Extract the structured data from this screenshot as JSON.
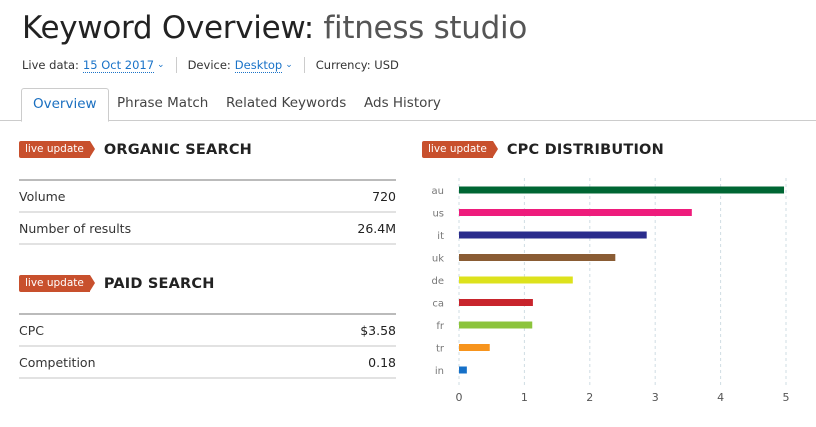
{
  "header": {
    "title_prefix": "Keyword Overview:",
    "keyword": "fitness studio",
    "live_data_label": "Live data:",
    "live_data_value": "15 Oct 2017",
    "device_label": "Device:",
    "device_value": "Desktop",
    "currency": "Currency: USD"
  },
  "tabs": [
    {
      "label": "Overview",
      "active": true
    },
    {
      "label": "Phrase Match"
    },
    {
      "label": "Related Keywords"
    },
    {
      "label": "Ads History"
    }
  ],
  "organic": {
    "badge": "live update",
    "title": "ORGANIC SEARCH",
    "rows": [
      {
        "label": "Volume",
        "value": "720"
      },
      {
        "label": "Number of results",
        "value": "26.4M"
      }
    ]
  },
  "paid": {
    "badge": "live update",
    "title": "PAID SEARCH",
    "rows": [
      {
        "label": "CPC",
        "value": "$3.58"
      },
      {
        "label": "Competition",
        "value": "0.18"
      }
    ]
  },
  "cpc": {
    "badge": "live update",
    "title": "CPC DISTRIBUTION"
  },
  "chart_data": {
    "type": "bar",
    "orientation": "horizontal",
    "categories": [
      "au",
      "us",
      "it",
      "uk",
      "de",
      "ca",
      "fr",
      "tr",
      "in"
    ],
    "values": [
      4.97,
      3.56,
      2.87,
      2.39,
      1.74,
      1.13,
      1.12,
      0.47,
      0.12
    ],
    "colors": [
      "#006633",
      "#ee1c7c",
      "#2a2c8c",
      "#8a5c34",
      "#dde21c",
      "#c8242c",
      "#8cc43c",
      "#f7941d",
      "#1670c8"
    ],
    "xlim": [
      0,
      5
    ],
    "xticks": [
      "0",
      "1",
      "2",
      "3",
      "4",
      "5"
    ],
    "grid": true
  }
}
